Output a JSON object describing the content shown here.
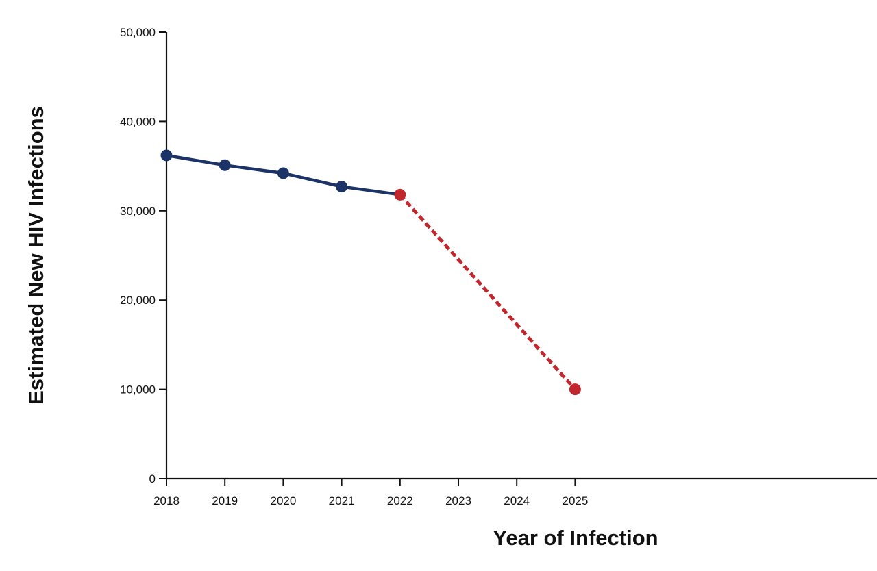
{
  "chart_data": {
    "type": "line",
    "title": "",
    "xlabel": "Year of Infection",
    "ylabel": "Estimated New HIV Infections",
    "categories": [
      "2018",
      "2019",
      "2020",
      "2021",
      "2022",
      "2023",
      "2024",
      "2025"
    ],
    "y_ticks": [
      "0",
      "10,000",
      "20,000",
      "30,000",
      "40,000",
      "50,000"
    ],
    "y_tick_values": [
      0,
      10000,
      20000,
      30000,
      40000,
      50000
    ],
    "ylim": [
      0,
      50000
    ],
    "grid": false,
    "series": [
      {
        "style": "solid",
        "points": [
          {
            "x": "2018",
            "y": 36200
          },
          {
            "x": "2019",
            "y": 35100
          },
          {
            "x": "2020",
            "y": 34200
          },
          {
            "x": "2021",
            "y": 32700
          },
          {
            "x": "2022",
            "y": 31800
          }
        ]
      },
      {
        "style": "dashed",
        "points": [
          {
            "x": "2022",
            "y": 31800
          },
          {
            "x": "2025",
            "y": 10000
          }
        ]
      }
    ],
    "colors": {
      "observed": "#1b3366",
      "projected": "#c1272d",
      "axis": "#111111"
    }
  }
}
